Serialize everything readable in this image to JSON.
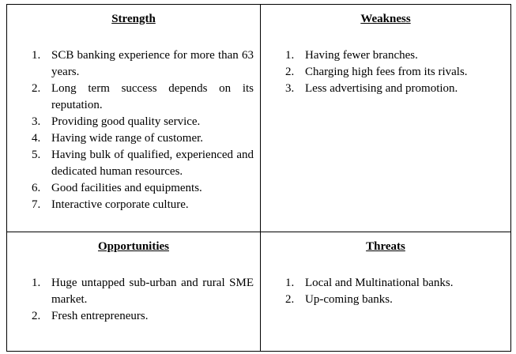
{
  "cells": [
    {
      "title": "Strength",
      "items": [
        {
          "n": "1.",
          "text": "SCB banking experience for more than 63 years."
        },
        {
          "n": "2.",
          "text": "Long term success depends on its reputation."
        },
        {
          "n": "3.",
          "text": "Providing good quality service."
        },
        {
          "n": "4.",
          "text": "Having wide range of customer."
        },
        {
          "n": "5.",
          "text": "Having bulk of qualified, experienced and dedicated human resources."
        },
        {
          "n": "6.",
          "text": "Good facilities and equipments."
        },
        {
          "n": "7.",
          "text": "Interactive corporate culture."
        }
      ]
    },
    {
      "title": "Weakness",
      "items": [
        {
          "n": "1.",
          "text": "Having fewer branches."
        },
        {
          "n": "2.",
          "text": "Charging high fees from its rivals."
        },
        {
          "n": "3.",
          "text": "Less advertising and promotion."
        }
      ]
    },
    {
      "title": "Opportunities",
      "items": [
        {
          "n": "1.",
          "text": "Huge untapped sub-urban and rural SME market."
        },
        {
          "n": "2.",
          "text": "Fresh entrepreneurs."
        }
      ]
    },
    {
      "title": "Threats",
      "items": [
        {
          "n": "1.",
          "text": "Local and Multinational banks."
        },
        {
          "n": "2.",
          "text": "Up-coming banks."
        }
      ]
    }
  ]
}
